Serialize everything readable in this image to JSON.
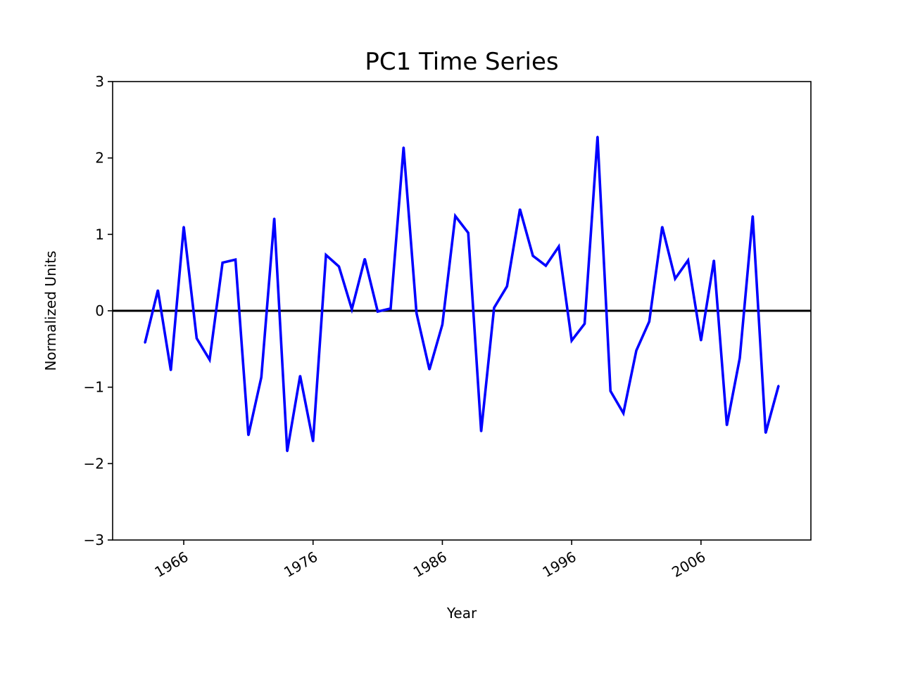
{
  "chart_data": {
    "type": "line",
    "title": "PC1 Time Series",
    "xlabel": "Year",
    "ylabel": "Normalized Units",
    "x_tick_labels": [
      "1966",
      "1976",
      "1986",
      "1996",
      "2006"
    ],
    "y_tick_labels": [
      "3",
      "2",
      "1",
      "0",
      "−1",
      "−2",
      "−3"
    ],
    "xlim": [
      1960.5,
      2014.5
    ],
    "ylim": [
      -3,
      3
    ],
    "grid": false,
    "legend": "none",
    "reference_line": {
      "y": 0,
      "color": "#000000"
    },
    "series": [
      {
        "color": "#0000ff",
        "x": [
          1963,
          1964,
          1965,
          1966,
          1967,
          1968,
          1969,
          1970,
          1971,
          1972,
          1973,
          1974,
          1975,
          1976,
          1977,
          1978,
          1979,
          1980,
          1981,
          1982,
          1983,
          1984,
          1985,
          1986,
          1987,
          1988,
          1989,
          1990,
          1991,
          1992,
          1993,
          1994,
          1995,
          1996,
          1997,
          1998,
          1999,
          2000,
          2001,
          2002,
          2003,
          2004,
          2005,
          2006,
          2007,
          2008,
          2009,
          2010,
          2011,
          2012
        ],
        "y": [
          -0.42,
          0.27,
          -0.78,
          1.1,
          -0.36,
          -0.64,
          0.63,
          0.67,
          -1.63,
          -0.87,
          1.21,
          -1.84,
          -0.85,
          -1.71,
          0.73,
          0.58,
          0.02,
          0.68,
          -0.01,
          0.03,
          2.14,
          -0.03,
          -0.77,
          -0.18,
          1.24,
          1.02,
          -1.58,
          0.04,
          0.32,
          1.33,
          0.72,
          0.59,
          0.84,
          -0.39,
          -0.17,
          2.28,
          -1.05,
          -1.34,
          -0.52,
          -0.14,
          1.1,
          0.42,
          0.66,
          -0.39,
          0.66,
          -1.5,
          -0.62,
          1.24,
          -1.6,
          -0.98
        ]
      }
    ]
  }
}
